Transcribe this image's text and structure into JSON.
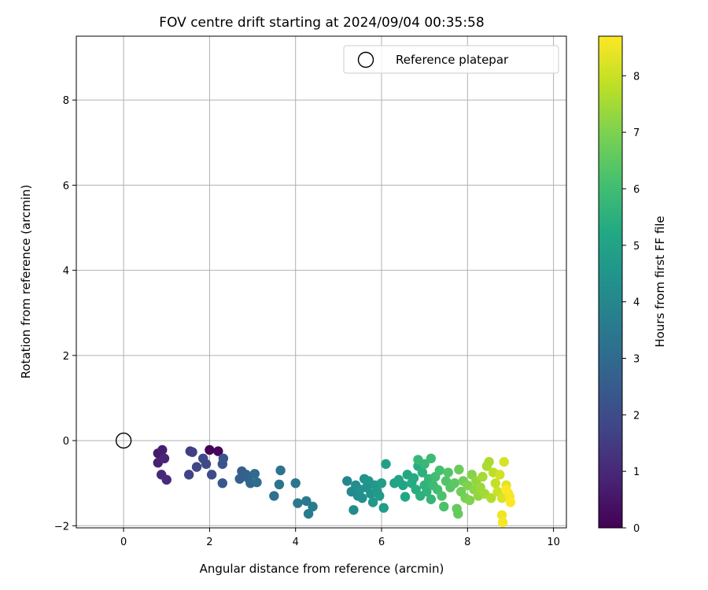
{
  "chart_data": {
    "type": "scatter",
    "title": "FOV centre drift starting at 2024/09/04 00:35:58",
    "xlabel": "Angular distance from reference (arcmin)",
    "ylabel": "Rotation from reference (arcmin)",
    "colorbar_label": "Hours from first FF file",
    "xlim": [
      -1.1,
      10.3
    ],
    "ylim": [
      -2.05,
      9.5
    ],
    "xticks": [
      0,
      2,
      4,
      6,
      8,
      10
    ],
    "yticks": [
      -2,
      0,
      2,
      4,
      6,
      8
    ],
    "colorbar_range": [
      0,
      8.7
    ],
    "colorbar_ticks": [
      0,
      1,
      2,
      3,
      4,
      5,
      6,
      7,
      8
    ],
    "colormap": "viridis",
    "grid": true,
    "legend_position": "top-right",
    "legend": [
      {
        "label": "Reference platepar",
        "marker": "open-circle"
      }
    ],
    "reference_point": {
      "x": 0,
      "y": 0
    },
    "points": [
      [
        0.8,
        -0.3,
        0.6
      ],
      [
        0.9,
        -0.22,
        0.7
      ],
      [
        0.8,
        -0.52,
        0.8
      ],
      [
        0.95,
        -0.42,
        0.9
      ],
      [
        0.88,
        -0.8,
        1.0
      ],
      [
        1.0,
        -0.92,
        1.1
      ],
      [
        1.55,
        -0.25,
        1.5
      ],
      [
        1.6,
        -0.27,
        1.6
      ],
      [
        1.52,
        -0.8,
        1.7
      ],
      [
        1.7,
        -0.62,
        1.8
      ],
      [
        1.85,
        -0.42,
        1.9
      ],
      [
        1.92,
        -0.55,
        1.9
      ],
      [
        2.0,
        -0.22,
        0.05
      ],
      [
        2.2,
        -0.25,
        0.15
      ],
      [
        2.05,
        -0.8,
        2.0
      ],
      [
        2.3,
        -0.55,
        2.2
      ],
      [
        2.32,
        -0.42,
        2.3
      ],
      [
        2.3,
        -1.0,
        2.4
      ],
      [
        2.7,
        -0.9,
        2.6
      ],
      [
        2.75,
        -0.72,
        2.6
      ],
      [
        2.85,
        -0.8,
        2.7
      ],
      [
        2.9,
        -0.88,
        2.8
      ],
      [
        2.95,
        -1.0,
        2.9
      ],
      [
        3.05,
        -0.78,
        3.0
      ],
      [
        3.1,
        -0.98,
        3.1
      ],
      [
        3.5,
        -1.3,
        3.2
      ],
      [
        3.62,
        -1.03,
        3.3
      ],
      [
        3.65,
        -0.7,
        3.3
      ],
      [
        4.0,
        -1.0,
        3.4
      ],
      [
        4.05,
        -1.47,
        3.5
      ],
      [
        4.25,
        -1.42,
        3.5
      ],
      [
        4.3,
        -1.72,
        3.6
      ],
      [
        4.4,
        -1.55,
        3.6
      ],
      [
        5.2,
        -0.95,
        4.0
      ],
      [
        5.3,
        -1.2,
        4.1
      ],
      [
        5.35,
        -1.63,
        4.1
      ],
      [
        5.4,
        -1.05,
        4.2
      ],
      [
        5.45,
        -1.3,
        4.2
      ],
      [
        5.5,
        -1.15,
        4.3
      ],
      [
        5.55,
        -1.35,
        4.3
      ],
      [
        5.6,
        -0.9,
        4.4
      ],
      [
        5.65,
        -1.1,
        4.4
      ],
      [
        5.7,
        -0.95,
        4.5
      ],
      [
        5.75,
        -1.25,
        4.5
      ],
      [
        5.8,
        -1.45,
        4.6
      ],
      [
        5.85,
        -1.05,
        4.6
      ],
      [
        5.9,
        -1.2,
        4.7
      ],
      [
        5.95,
        -1.3,
        4.7
      ],
      [
        6.0,
        -1.0,
        4.8
      ],
      [
        6.05,
        -1.58,
        4.8
      ],
      [
        6.1,
        -0.55,
        4.9
      ],
      [
        6.3,
        -1.0,
        5.0
      ],
      [
        6.4,
        -0.92,
        5.1
      ],
      [
        6.5,
        -1.05,
        5.1
      ],
      [
        6.55,
        -1.32,
        5.2
      ],
      [
        6.6,
        -0.8,
        5.2
      ],
      [
        6.7,
        -1.0,
        5.3
      ],
      [
        6.75,
        -0.88,
        5.3
      ],
      [
        6.8,
        -1.15,
        5.4
      ],
      [
        6.85,
        -0.6,
        5.4
      ],
      [
        6.9,
        -1.3,
        5.5
      ],
      [
        6.95,
        -0.75,
        5.5
      ],
      [
        7.0,
        -1.05,
        5.6
      ],
      [
        7.05,
        -1.2,
        5.6
      ],
      [
        7.1,
        -0.9,
        5.7
      ],
      [
        7.15,
        -1.38,
        5.7
      ],
      [
        6.85,
        -0.45,
        5.8
      ],
      [
        7.0,
        -0.55,
        5.8
      ],
      [
        7.15,
        -0.42,
        5.9
      ],
      [
        7.2,
        -1.05,
        5.9
      ],
      [
        7.25,
        -0.85,
        6.0
      ],
      [
        7.3,
        -1.15,
        6.0
      ],
      [
        7.35,
        -0.7,
        6.1
      ],
      [
        7.4,
        -1.3,
        6.2
      ],
      [
        7.45,
        -1.55,
        6.2
      ],
      [
        7.5,
        -0.95,
        6.3
      ],
      [
        7.55,
        -0.75,
        6.3
      ],
      [
        7.6,
        -1.1,
        6.4
      ],
      [
        7.7,
        -1.0,
        6.5
      ],
      [
        7.75,
        -1.6,
        6.6
      ],
      [
        7.78,
        -1.72,
        6.6
      ],
      [
        7.8,
        -0.68,
        6.7
      ],
      [
        7.85,
        -1.2,
        6.8
      ],
      [
        7.9,
        -0.95,
        6.8
      ],
      [
        7.95,
        -1.35,
        6.9
      ],
      [
        8.0,
        -1.05,
        7.0
      ],
      [
        8.05,
        -1.4,
        7.0
      ],
      [
        8.1,
        -0.8,
        7.1
      ],
      [
        8.15,
        -1.15,
        7.2
      ],
      [
        8.2,
        -0.95,
        7.3
      ],
      [
        8.25,
        -1.3,
        7.3
      ],
      [
        8.3,
        -1.1,
        7.4
      ],
      [
        8.35,
        -0.85,
        7.5
      ],
      [
        8.4,
        -1.25,
        7.5
      ],
      [
        8.45,
        -0.6,
        7.6
      ],
      [
        8.5,
        -0.5,
        7.6
      ],
      [
        8.55,
        -1.35,
        7.7
      ],
      [
        8.6,
        -0.75,
        7.8
      ],
      [
        8.65,
        -1.0,
        7.9
      ],
      [
        8.7,
        -1.2,
        8.0
      ],
      [
        8.75,
        -0.8,
        8.1
      ],
      [
        8.8,
        -1.35,
        8.2
      ],
      [
        8.85,
        -0.5,
        8.2
      ],
      [
        8.9,
        -1.05,
        8.3
      ],
      [
        8.95,
        -1.25,
        8.4
      ],
      [
        8.8,
        -1.75,
        8.5
      ],
      [
        8.82,
        -1.92,
        8.6
      ],
      [
        8.98,
        -1.32,
        8.6
      ],
      [
        9.0,
        -1.45,
        8.7
      ],
      [
        8.9,
        -1.15,
        8.7
      ]
    ]
  }
}
